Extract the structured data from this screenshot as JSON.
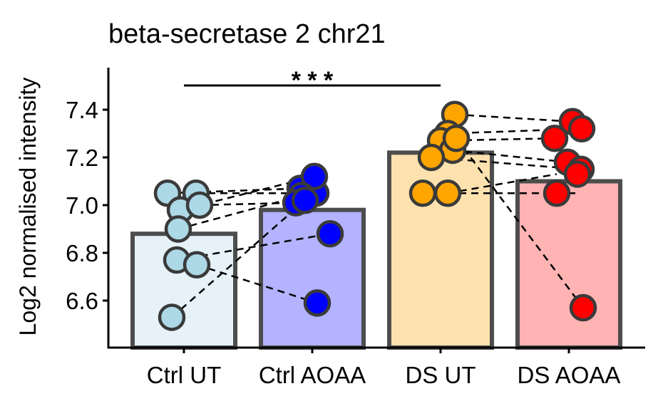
{
  "chart_data": {
    "type": "bar",
    "title": "beta-secretase 2 chr21",
    "xlabel": "",
    "ylabel": "Log2 normalised intensity",
    "categories": [
      "Ctrl UT",
      "Ctrl AOAA",
      "DS UT",
      "DS AOAA"
    ],
    "bar_values": [
      6.88,
      6.98,
      7.22,
      7.1
    ],
    "bar_fill_colors": [
      "#e6f2f8",
      "#b3b3ff",
      "#fde2b0",
      "#ffb3b3"
    ],
    "point_colors": [
      "#add8e6",
      "#0000ff",
      "#ffa500",
      "#ff0000"
    ],
    "ylim": [
      6.4,
      7.6
    ],
    "yticks": [
      "6.6",
      "6.8",
      "7.0",
      "7.2",
      "7.4"
    ],
    "points": [
      [
        7.05,
        7.05,
        6.98,
        6.9,
        7.0,
        6.77,
        6.75,
        6.53
      ],
      [
        7.07,
        7.05,
        7.12,
        7.04,
        7.01,
        6.88,
        6.59,
        7.02
      ],
      [
        7.38,
        7.3,
        7.27,
        7.23,
        7.2,
        7.05,
        7.05,
        7.28
      ],
      [
        7.35,
        7.32,
        7.28,
        7.18,
        7.15,
        7.13,
        7.05,
        6.57
      ]
    ],
    "pairs": [
      [
        7.05,
        7.07
      ],
      [
        7.05,
        7.05
      ],
      [
        6.98,
        7.12
      ],
      [
        6.9,
        7.04
      ],
      [
        7.0,
        7.01
      ],
      [
        6.77,
        6.88
      ],
      [
        6.75,
        6.59
      ],
      [
        6.53,
        7.02
      ],
      [
        7.38,
        7.35
      ],
      [
        7.3,
        7.32
      ],
      [
        7.27,
        7.28
      ],
      [
        7.23,
        7.18
      ],
      [
        7.2,
        7.15
      ],
      [
        7.05,
        7.05
      ],
      [
        7.05,
        7.13
      ],
      [
        7.28,
        6.57
      ]
    ],
    "significance": {
      "from": "Ctrl UT",
      "to": "DS UT",
      "label": "* * *"
    },
    "grid": false,
    "legend": "none"
  }
}
